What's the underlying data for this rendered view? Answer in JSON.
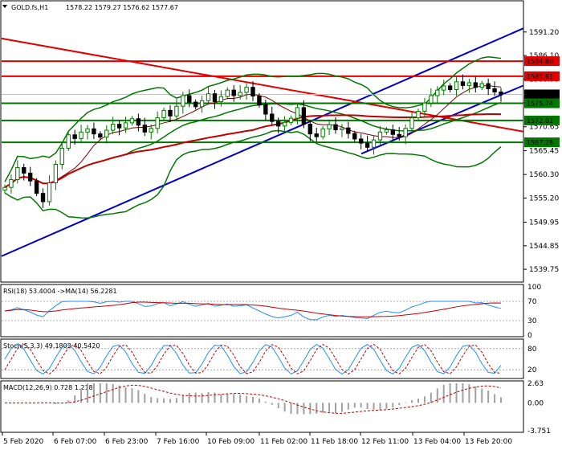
{
  "chart_data": {
    "type": "candlestick",
    "symbol_title": "GOLD.fs,H1",
    "ohlc_header": "1578.22 1579.27 1576.62 1577.67",
    "y_axis": {
      "ylim": [
        1537.5,
        1595.0
      ],
      "ticks": [
        "1591.20",
        "1586.10",
        "1580.95",
        "1575.85",
        "1570.65",
        "1565.45",
        "1560.30",
        "1555.20",
        "1549.95",
        "1544.85",
        "1539.75"
      ]
    },
    "x_ticks": [
      "5 Feb 2020",
      "6 Feb 07:00",
      "6 Feb 23:00",
      "7 Feb 16:00",
      "10 Feb 09:00",
      "11 Feb 02:00",
      "11 Feb 18:00",
      "12 Feb 11:00",
      "13 Feb 04:00",
      "13 Feb 20:00"
    ],
    "levels": [
      {
        "value": "1584.88",
        "color": "#e00000"
      },
      {
        "value": "1581.61",
        "color": "#e00000"
      },
      {
        "value": "1577.67",
        "color": "#000000"
      },
      {
        "value": "1575.74",
        "color": "#007800"
      },
      {
        "value": "1572.02",
        "color": "#007800"
      },
      {
        "value": "1567.28",
        "color": "#007800"
      }
    ],
    "close_series": [
      1557.5,
      1559.2,
      1561.8,
      1560.6,
      1558.9,
      1556.2,
      1554.4,
      1558.5,
      1562.5,
      1566.0,
      1568.9,
      1568.1,
      1569.5,
      1570.2,
      1569.1,
      1568.4,
      1569.9,
      1571.2,
      1570.4,
      1571.5,
      1572.4,
      1571.0,
      1569.5,
      1570.3,
      1572.6,
      1574.2,
      1573.0,
      1575.1,
      1577.4,
      1576.0,
      1575.0,
      1576.3,
      1577.8,
      1576.1,
      1577.2,
      1578.6,
      1577.4,
      1578.1,
      1579.2,
      1577.3,
      1575.4,
      1573.4,
      1571.8,
      1570.8,
      1571.6,
      1572.5,
      1574.8,
      1571.2,
      1569.1,
      1568.5,
      1570.2,
      1571.1,
      1570.0,
      1570.4,
      1569.2,
      1568.0,
      1567.1,
      1566.2,
      1567.8,
      1569.5,
      1570.0,
      1569.0,
      1568.5,
      1570.3,
      1572.6,
      1574.0,
      1575.8,
      1577.4,
      1578.6,
      1579.5,
      1578.7,
      1580.4,
      1579.6,
      1580.2,
      1579.2,
      1580.0,
      1578.9,
      1578.2,
      1577.67
    ],
    "indicators": {
      "rsi": {
        "label": "RSI(18) 53.4004 ->MA(14) 56.2281",
        "ticks": [
          "100",
          "70",
          "30",
          "0"
        ],
        "color": "#1e90ff",
        "ma_color": "#c00000"
      },
      "stoch": {
        "label": "Stoch(5,3,3) 49.1803 40.5420",
        "ticks": [
          "80",
          "20"
        ],
        "color": "#1e90ff",
        "signal_color": "#c00000"
      },
      "macd": {
        "label": "MACD(12,26,9) 0.728 1.218",
        "ticks": [
          "2.63",
          "0.00",
          "-3.751"
        ],
        "color": "#a0a0a0",
        "signal_color": "#c00000"
      }
    },
    "colors": {
      "bollinger": "#007800",
      "fast_ma": "#7a0000",
      "slow_ma": "#c00000",
      "trend_up": "#0000c8",
      "trend_down": "#e00000",
      "bull": "#007800",
      "bear": "#000000"
    }
  }
}
